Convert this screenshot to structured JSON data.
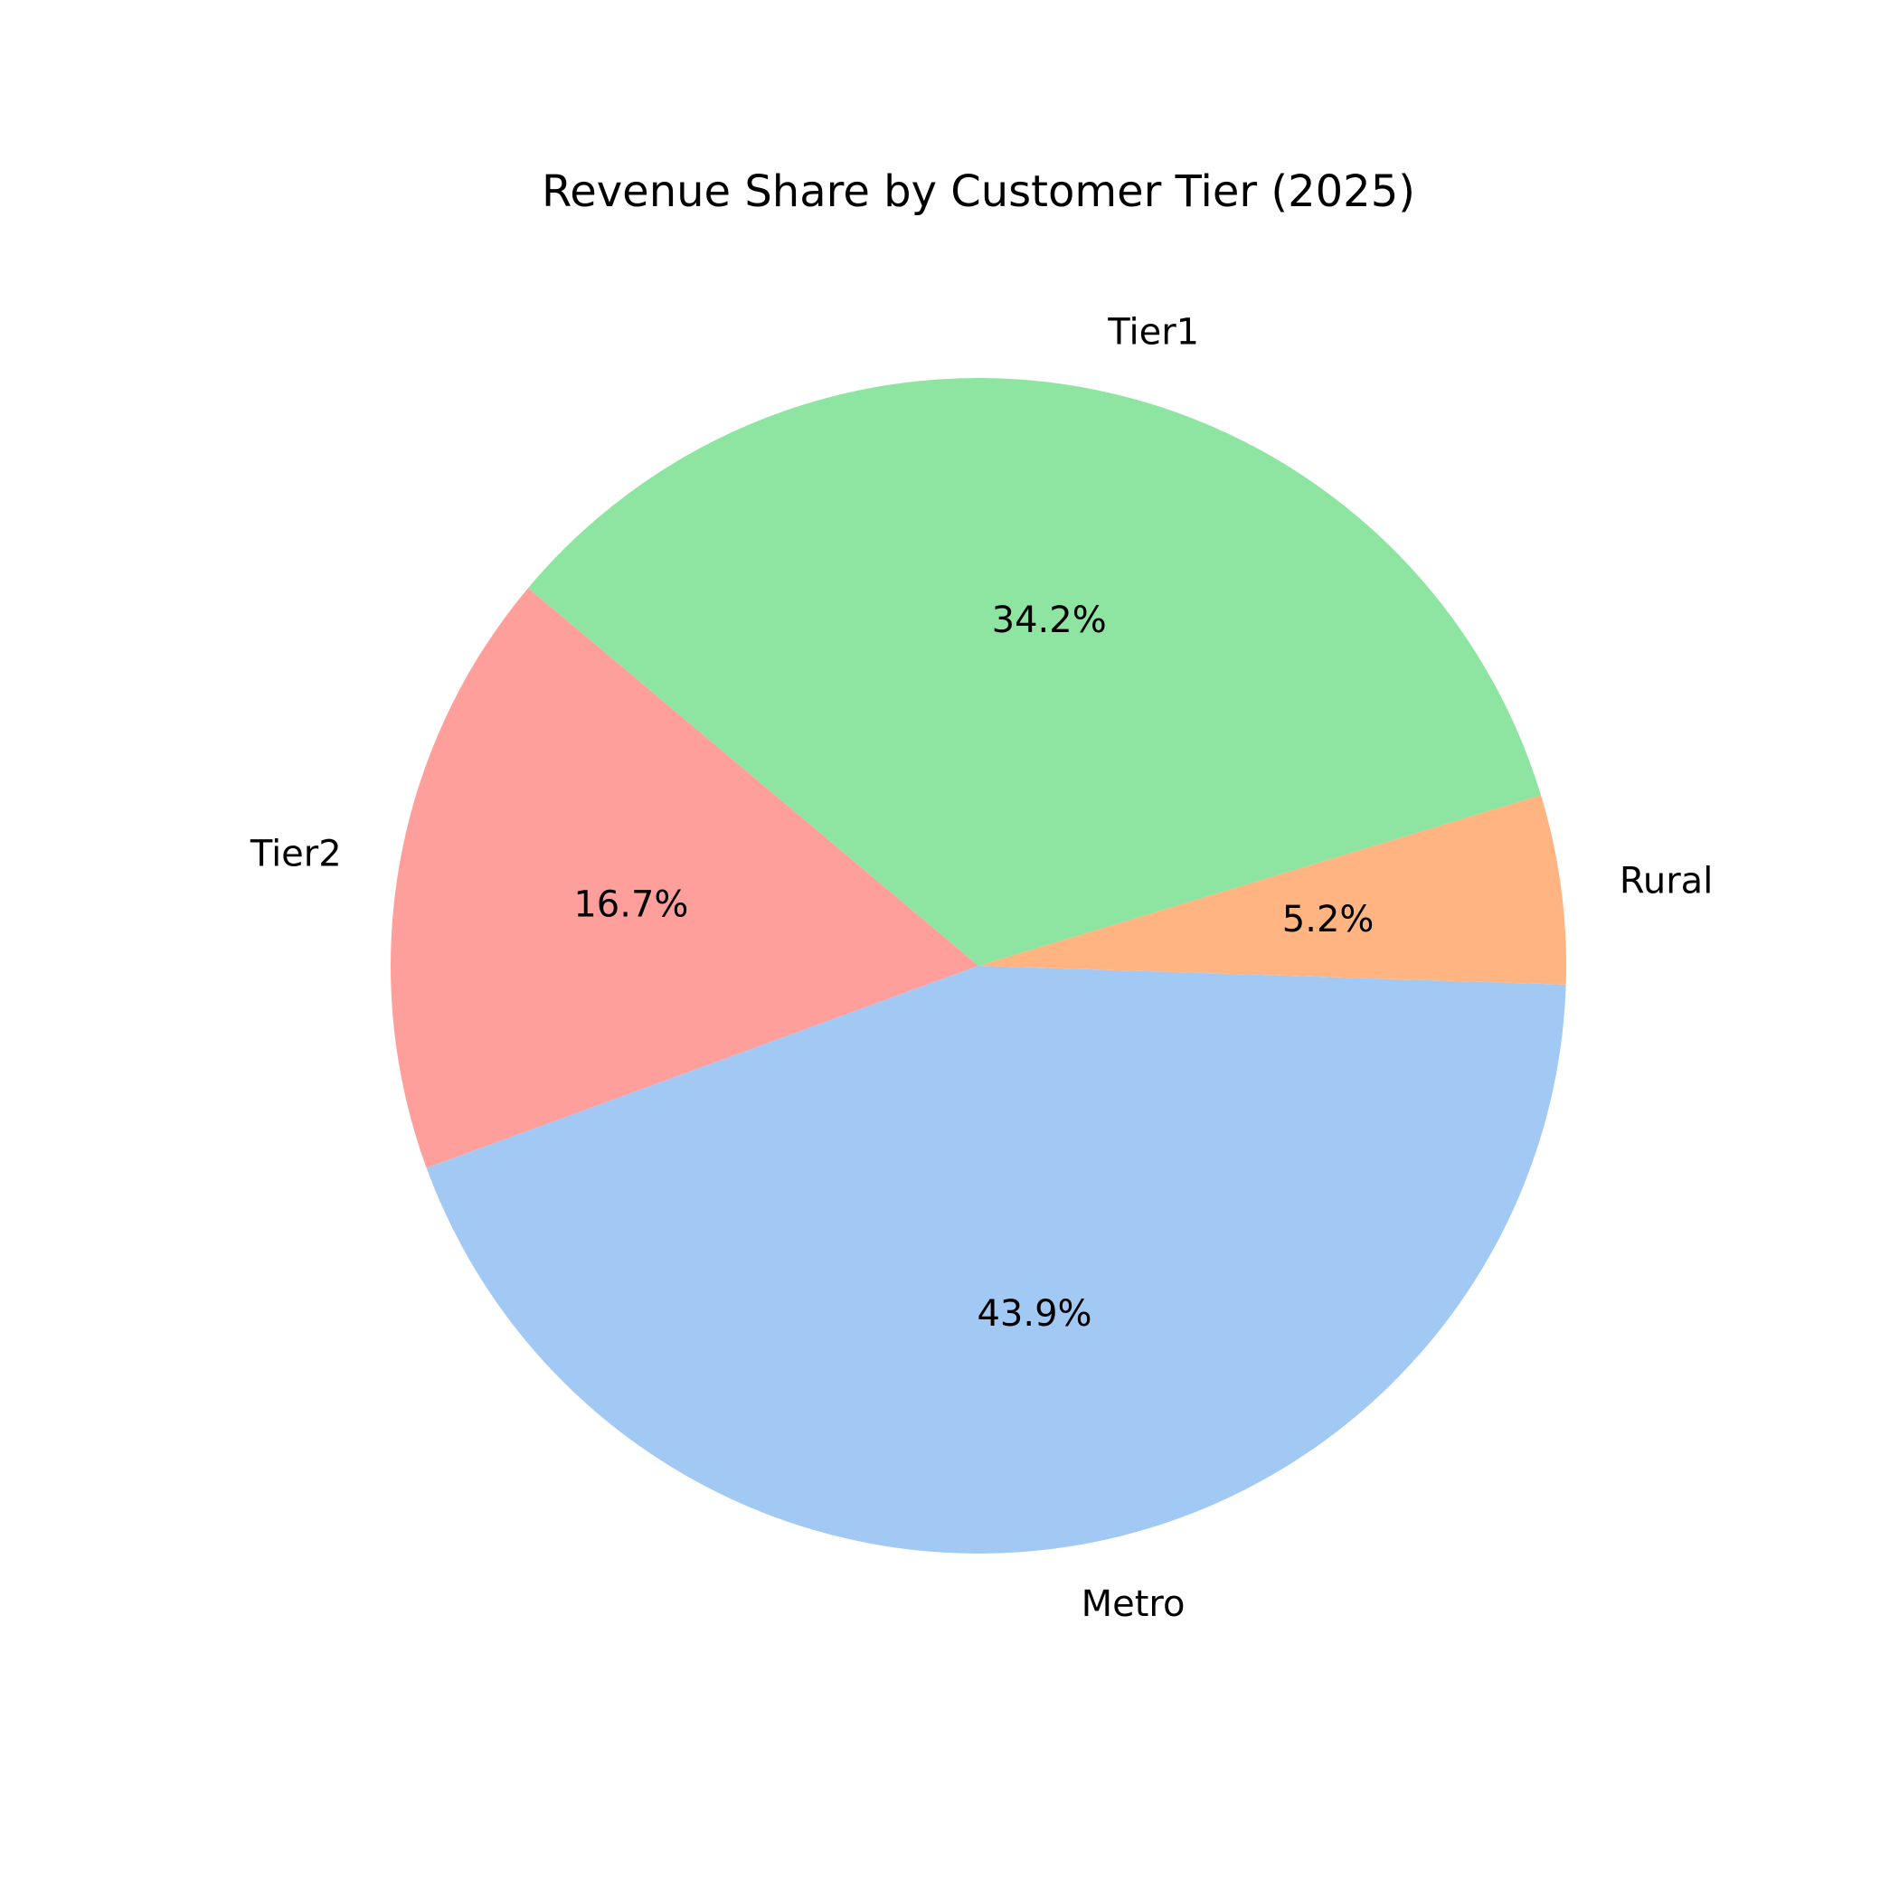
{
  "chart_data": {
    "type": "pie",
    "title": "Revenue Share by Customer Tier (2025)",
    "start_angle_deg": 140,
    "direction": "counterclockwise",
    "slices": [
      {
        "label": "Tier2",
        "value": 16.7,
        "pct_text": "16.7%",
        "color": "#ff9f9b"
      },
      {
        "label": "Metro",
        "value": 43.9,
        "pct_text": "43.9%",
        "color": "#a1c9f4"
      },
      {
        "label": "Rural",
        "value": 5.2,
        "pct_text": "5.2%",
        "color": "#ffb482"
      },
      {
        "label": "Tier1",
        "value": 34.2,
        "pct_text": "34.2%",
        "color": "#8de5a1"
      }
    ]
  }
}
